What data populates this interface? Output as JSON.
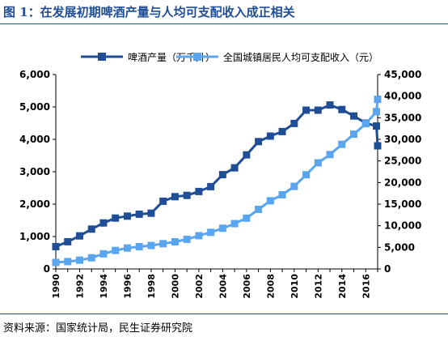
{
  "figure": {
    "title": "图 1：在发展初期啤酒产量与人均可支配收入成正相关",
    "source": "资料来源：国家统计局，民生证券研究院"
  },
  "chart_data": {
    "type": "line",
    "x": [
      1990,
      1991,
      1992,
      1993,
      1994,
      1995,
      1996,
      1997,
      1998,
      1999,
      2000,
      2001,
      2002,
      2003,
      2004,
      2005,
      2006,
      2007,
      2008,
      2009,
      2010,
      2011,
      2012,
      2013,
      2014,
      2015,
      2016,
      2016.9,
      2017
    ],
    "x_tick_labels": [
      "1990",
      "1992",
      "1994",
      "1996",
      "1998",
      "2000",
      "2002",
      "2004",
      "2006",
      "2008",
      "2010",
      "2012",
      "2014",
      "2016"
    ],
    "y_left": {
      "lim": [
        0,
        6000
      ],
      "ticks": [
        "0",
        "1,000",
        "2,000",
        "3,000",
        "4,000",
        "5,000",
        "6,000"
      ]
    },
    "y_right": {
      "lim": [
        0,
        45000
      ],
      "ticks": [
        "0",
        "5,000",
        "10,000",
        "15,000",
        "20,000",
        "25,000",
        "30,000",
        "35,000",
        "40,000",
        "45,000"
      ]
    },
    "grid": false,
    "legend_position": "top",
    "series": [
      {
        "name": "啤酒产量（万千升）",
        "axis": "left",
        "color": "#1f4e96",
        "marker": "square",
        "values": [
          690,
          840,
          1020,
          1230,
          1420,
          1570,
          1630,
          1690,
          1720,
          2090,
          2230,
          2270,
          2390,
          2540,
          2910,
          3120,
          3520,
          3930,
          4100,
          4240,
          4490,
          4900,
          4900,
          5060,
          4920,
          4720,
          4500,
          4410,
          3800
        ]
      },
      {
        "name": "全国城镇居民人均可支配收入（元）",
        "axis": "right",
        "color": "#5aa5ef",
        "marker": "square",
        "values": [
          1510,
          1700,
          2030,
          2580,
          3500,
          4280,
          4840,
          5160,
          5430,
          5850,
          6280,
          6860,
          7700,
          8470,
          9420,
          10490,
          11760,
          13790,
          15780,
          17170,
          19110,
          21810,
          24560,
          26470,
          28840,
          31190,
          33620,
          36400,
          39250
        ]
      }
    ]
  }
}
